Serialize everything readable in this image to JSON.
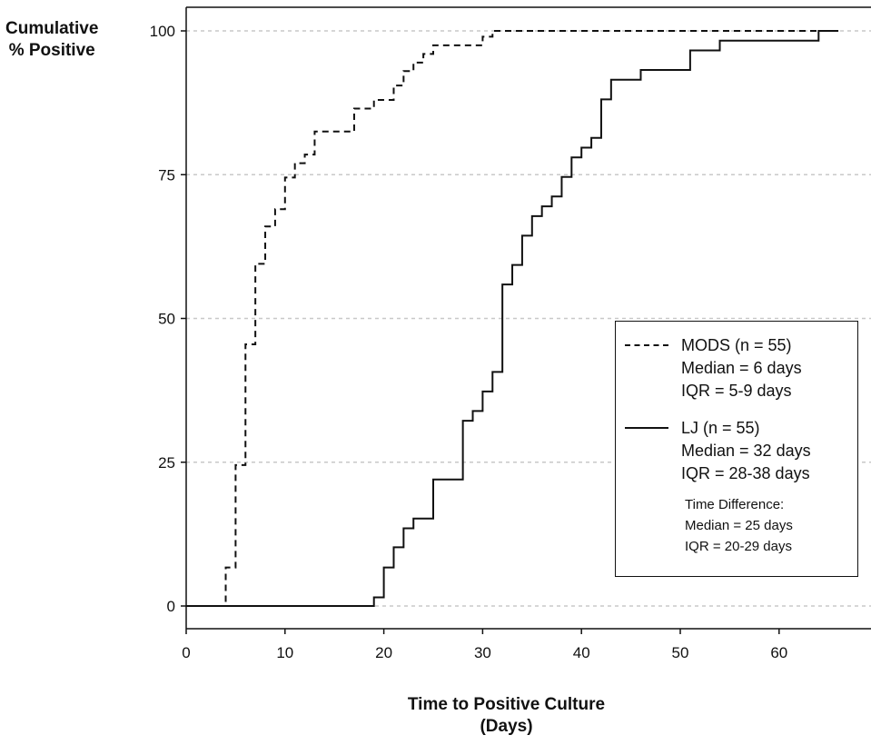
{
  "chart_data": {
    "type": "line",
    "ylabel": [
      "Cumulative",
      "% Positive"
    ],
    "xlabel": [
      "Time to Positive Culture",
      "(Days)"
    ],
    "xlim": [
      0,
      66
    ],
    "ylim": [
      0,
      100
    ],
    "xticks": [
      0,
      10,
      20,
      30,
      40,
      50,
      60
    ],
    "yticks": [
      0,
      25,
      50,
      75,
      100
    ],
    "grid": "horizontal dotted",
    "legend_position": "lower-right",
    "series": [
      {
        "name": "MODS (n = 55)",
        "style": "dashed",
        "color": "#111111",
        "steps": [
          [
            0,
            0
          ],
          [
            4,
            6.7
          ],
          [
            5,
            24.5
          ],
          [
            6,
            45.5
          ],
          [
            7,
            59.5
          ],
          [
            8,
            66
          ],
          [
            9,
            69
          ],
          [
            10,
            74.5
          ],
          [
            11,
            77
          ],
          [
            12,
            78.5
          ],
          [
            13,
            82.5
          ],
          [
            17,
            86.5
          ],
          [
            19,
            88
          ],
          [
            21,
            90.5
          ],
          [
            22,
            93
          ],
          [
            23,
            94.5
          ],
          [
            24,
            96
          ],
          [
            25,
            97.5
          ],
          [
            30,
            99
          ],
          [
            31,
            100
          ],
          [
            66,
            100
          ]
        ]
      },
      {
        "name": "LJ (n = 55)",
        "style": "solid",
        "color": "#111111",
        "steps": [
          [
            0,
            0
          ],
          [
            19,
            1.5
          ],
          [
            20,
            6.7
          ],
          [
            21,
            10.2
          ],
          [
            22,
            13.5
          ],
          [
            23,
            15.2
          ],
          [
            25,
            22
          ],
          [
            28,
            32.2
          ],
          [
            29,
            33.9
          ],
          [
            30,
            37.3
          ],
          [
            31,
            40.7
          ],
          [
            32,
            55.9
          ],
          [
            33,
            59.3
          ],
          [
            34,
            64.4
          ],
          [
            35,
            67.8
          ],
          [
            36,
            69.5
          ],
          [
            37,
            71.2
          ],
          [
            38,
            74.6
          ],
          [
            39,
            78
          ],
          [
            40,
            79.7
          ],
          [
            41,
            81.4
          ],
          [
            42,
            88.1
          ],
          [
            43,
            91.5
          ],
          [
            46,
            93.2
          ],
          [
            51,
            96.6
          ],
          [
            54,
            98.3
          ],
          [
            64,
            100
          ],
          [
            66,
            100
          ]
        ]
      }
    ]
  },
  "legend": {
    "mods_lines": [
      "MODS (n = 55)",
      "Median = 6 days",
      "IQR = 5-9 days"
    ],
    "lj_lines": [
      "LJ (n = 55)",
      "Median = 32 days",
      "IQR = 28-38 days"
    ],
    "diff_lines": [
      "Time Difference:",
      "Median = 25  days",
      "IQR = 20-29 days"
    ]
  }
}
